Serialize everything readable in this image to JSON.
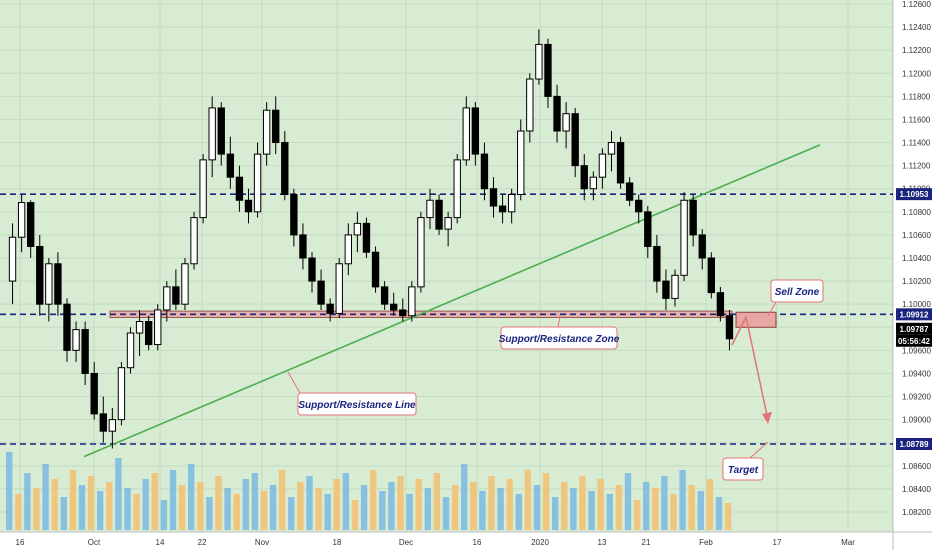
{
  "chart_data": {
    "type": "candlestick",
    "title": "",
    "xlabel": "",
    "ylabel": "",
    "ylim": [
      1.081,
      1.126
    ],
    "grid": true,
    "x_tick_labels": [
      "16",
      "Oct",
      "14",
      "22",
      "Nov",
      "18",
      "Dec",
      "16",
      "2020",
      "13",
      "21",
      "Feb",
      "17",
      "Mar"
    ],
    "y_tick_labels": [
      "1.12600",
      "1.12400",
      "1.12200",
      "1.12000",
      "1.11800",
      "1.11600",
      "1.11400",
      "1.11200",
      "1.11000",
      "1.10800",
      "1.10600",
      "1.10400",
      "1.10200",
      "1.10000",
      "1.09800",
      "1.09600",
      "1.09400",
      "1.09200",
      "1.09000",
      "1.08800",
      "1.08600",
      "1.08400",
      "1.08200"
    ],
    "price_tags": [
      {
        "label": "1.10953",
        "value": 1.10953,
        "color": "#1a237e"
      },
      {
        "label": "1.09912",
        "value": 1.09912,
        "color": "#1a237e"
      },
      {
        "label": "1.09787",
        "value": 1.09787,
        "color": "#000000"
      },
      {
        "label": "05:56:42",
        "value": 1.097,
        "color": "#000000"
      },
      {
        "label": "1.08789",
        "value": 1.08789,
        "color": "#1a237e"
      }
    ],
    "horizontal_levels": [
      1.10953,
      1.09912,
      1.08789
    ],
    "sr_zone": [
      1.09885,
      1.0994
    ],
    "sell_zone": [
      1.098,
      1.0993
    ],
    "trend_line": {
      "from": [
        1.0868
      ],
      "to": [
        1.1138
      ]
    },
    "candles": [
      [
        1.102,
        1.107,
        1.1,
        1.1058
      ],
      [
        1.1058,
        1.1095,
        1.1045,
        1.1088
      ],
      [
        1.1088,
        1.109,
        1.104,
        1.105
      ],
      [
        1.105,
        1.106,
        1.099,
        1.1
      ],
      [
        1.1,
        1.104,
        1.0985,
        1.1035
      ],
      [
        1.1035,
        1.1045,
        1.099,
        1.1
      ],
      [
        1.1,
        1.1005,
        1.095,
        1.096
      ],
      [
        1.096,
        1.0985,
        1.095,
        1.0978
      ],
      [
        1.0978,
        1.0985,
        1.093,
        1.094
      ],
      [
        1.094,
        1.095,
        1.09,
        1.0905
      ],
      [
        1.0905,
        1.092,
        1.088,
        1.089
      ],
      [
        1.089,
        1.091,
        1.0875,
        1.09
      ],
      [
        1.09,
        1.095,
        1.0895,
        1.0945
      ],
      [
        1.0945,
        1.098,
        1.094,
        1.0975
      ],
      [
        1.0975,
        1.0995,
        1.0955,
        1.0985
      ],
      [
        1.0985,
        1.099,
        1.096,
        1.0965
      ],
      [
        1.0965,
        1.1,
        1.096,
        1.0995
      ],
      [
        1.0995,
        1.102,
        1.0985,
        1.1015
      ],
      [
        1.1015,
        1.103,
        1.0995,
        1.1
      ],
      [
        1.1,
        1.104,
        1.0995,
        1.1035
      ],
      [
        1.1035,
        1.108,
        1.103,
        1.1075
      ],
      [
        1.1075,
        1.113,
        1.107,
        1.1125
      ],
      [
        1.1125,
        1.118,
        1.111,
        1.117
      ],
      [
        1.117,
        1.1175,
        1.112,
        1.113
      ],
      [
        1.113,
        1.1145,
        1.11,
        1.111
      ],
      [
        1.111,
        1.112,
        1.108,
        1.109
      ],
      [
        1.109,
        1.11,
        1.107,
        1.108
      ],
      [
        1.108,
        1.114,
        1.1075,
        1.113
      ],
      [
        1.113,
        1.1175,
        1.112,
        1.1168
      ],
      [
        1.1168,
        1.118,
        1.113,
        1.114
      ],
      [
        1.114,
        1.115,
        1.109,
        1.1095
      ],
      [
        1.1095,
        1.11,
        1.105,
        1.106
      ],
      [
        1.106,
        1.107,
        1.103,
        1.104
      ],
      [
        1.104,
        1.1045,
        1.101,
        1.102
      ],
      [
        1.102,
        1.103,
        1.0995,
        1.1
      ],
      [
        1.1,
        1.1005,
        1.0985,
        1.0992
      ],
      [
        1.0992,
        1.104,
        1.0988,
        1.1035
      ],
      [
        1.1035,
        1.107,
        1.1025,
        1.106
      ],
      [
        1.106,
        1.108,
        1.1045,
        1.107
      ],
      [
        1.107,
        1.1075,
        1.104,
        1.1045
      ],
      [
        1.1045,
        1.105,
        1.101,
        1.1015
      ],
      [
        1.1015,
        1.102,
        1.0995,
        1.1
      ],
      [
        1.1,
        1.101,
        1.099,
        1.0995
      ],
      [
        1.0995,
        1.1005,
        1.0985,
        1.099
      ],
      [
        1.099,
        1.102,
        1.0985,
        1.1015
      ],
      [
        1.1015,
        1.108,
        1.101,
        1.1075
      ],
      [
        1.1075,
        1.11,
        1.1065,
        1.109
      ],
      [
        1.109,
        1.1095,
        1.106,
        1.1065
      ],
      [
        1.1065,
        1.108,
        1.105,
        1.1075
      ],
      [
        1.1075,
        1.113,
        1.107,
        1.1125
      ],
      [
        1.1125,
        1.118,
        1.112,
        1.117
      ],
      [
        1.117,
        1.1175,
        1.112,
        1.113
      ],
      [
        1.113,
        1.114,
        1.109,
        1.11
      ],
      [
        1.11,
        1.111,
        1.1075,
        1.1085
      ],
      [
        1.1085,
        1.1095,
        1.107,
        1.108
      ],
      [
        1.108,
        1.11,
        1.107,
        1.1095
      ],
      [
        1.1095,
        1.116,
        1.109,
        1.115
      ],
      [
        1.115,
        1.12,
        1.114,
        1.1195
      ],
      [
        1.1195,
        1.1238,
        1.119,
        1.1225
      ],
      [
        1.1225,
        1.123,
        1.117,
        1.118
      ],
      [
        1.118,
        1.119,
        1.114,
        1.115
      ],
      [
        1.115,
        1.1175,
        1.1135,
        1.1165
      ],
      [
        1.1165,
        1.117,
        1.111,
        1.112
      ],
      [
        1.112,
        1.113,
        1.109,
        1.11
      ],
      [
        1.11,
        1.1115,
        1.109,
        1.111
      ],
      [
        1.111,
        1.1135,
        1.11,
        1.113
      ],
      [
        1.113,
        1.115,
        1.1115,
        1.114
      ],
      [
        1.114,
        1.1145,
        1.11,
        1.1105
      ],
      [
        1.1105,
        1.111,
        1.1085,
        1.109
      ],
      [
        1.109,
        1.1095,
        1.107,
        1.108
      ],
      [
        1.108,
        1.1085,
        1.104,
        1.105
      ],
      [
        1.105,
        1.106,
        1.101,
        1.102
      ],
      [
        1.102,
        1.103,
        1.0995,
        1.1005
      ],
      [
        1.1005,
        1.103,
        1.0998,
        1.1025
      ],
      [
        1.1025,
        1.1097,
        1.102,
        1.109
      ],
      [
        1.109,
        1.1095,
        1.105,
        1.106
      ],
      [
        1.106,
        1.1065,
        1.103,
        1.104
      ],
      [
        1.104,
        1.1045,
        1.1005,
        1.101
      ],
      [
        1.101,
        1.1015,
        1.0985,
        1.099
      ],
      [
        1.099,
        1.0995,
        1.096,
        1.097
      ]
    ],
    "volumes": [
      [
        130,
        "b"
      ],
      [
        60,
        "o"
      ],
      [
        95,
        "b"
      ],
      [
        70,
        "o"
      ],
      [
        110,
        "b"
      ],
      [
        85,
        "o"
      ],
      [
        55,
        "b"
      ],
      [
        100,
        "o"
      ],
      [
        75,
        "b"
      ],
      [
        90,
        "o"
      ],
      [
        65,
        "b"
      ],
      [
        80,
        "o"
      ],
      [
        120,
        "b"
      ],
      [
        70,
        "b"
      ],
      [
        60,
        "o"
      ],
      [
        85,
        "b"
      ],
      [
        95,
        "o"
      ],
      [
        50,
        "b"
      ],
      [
        100,
        "b"
      ],
      [
        75,
        "o"
      ],
      [
        110,
        "b"
      ],
      [
        80,
        "o"
      ],
      [
        55,
        "b"
      ],
      [
        90,
        "o"
      ],
      [
        70,
        "b"
      ],
      [
        60,
        "o"
      ],
      [
        85,
        "b"
      ],
      [
        95,
        "b"
      ],
      [
        65,
        "o"
      ],
      [
        75,
        "b"
      ],
      [
        100,
        "o"
      ],
      [
        55,
        "b"
      ],
      [
        80,
        "o"
      ],
      [
        90,
        "b"
      ],
      [
        70,
        "o"
      ],
      [
        60,
        "b"
      ],
      [
        85,
        "o"
      ],
      [
        95,
        "b"
      ],
      [
        50,
        "o"
      ],
      [
        75,
        "b"
      ],
      [
        100,
        "o"
      ],
      [
        65,
        "b"
      ],
      [
        80,
        "b"
      ],
      [
        90,
        "o"
      ],
      [
        60,
        "b"
      ],
      [
        85,
        "o"
      ],
      [
        70,
        "b"
      ],
      [
        95,
        "o"
      ],
      [
        55,
        "b"
      ],
      [
        75,
        "o"
      ],
      [
        110,
        "b"
      ],
      [
        80,
        "o"
      ],
      [
        65,
        "b"
      ],
      [
        90,
        "o"
      ],
      [
        70,
        "b"
      ],
      [
        85,
        "o"
      ],
      [
        60,
        "b"
      ],
      [
        100,
        "o"
      ],
      [
        75,
        "b"
      ],
      [
        95,
        "o"
      ],
      [
        55,
        "b"
      ],
      [
        80,
        "o"
      ],
      [
        70,
        "b"
      ],
      [
        90,
        "o"
      ],
      [
        65,
        "b"
      ],
      [
        85,
        "o"
      ],
      [
        60,
        "b"
      ],
      [
        75,
        "o"
      ],
      [
        95,
        "b"
      ],
      [
        50,
        "o"
      ],
      [
        80,
        "b"
      ],
      [
        70,
        "o"
      ],
      [
        90,
        "b"
      ],
      [
        60,
        "o"
      ],
      [
        100,
        "b"
      ],
      [
        75,
        "o"
      ],
      [
        65,
        "b"
      ],
      [
        85,
        "o"
      ],
      [
        55,
        "b"
      ],
      [
        45,
        "o"
      ]
    ],
    "colors": {
      "background": "#d7ecd3",
      "candle": "#000000",
      "level_line": "#1a237e",
      "trend_line": "#4caf50",
      "zone_fill": "#e9a7a3",
      "zone_stroke": "#8a3f3b",
      "arrow": "#e57373",
      "vol_blue": "#7ab8e0",
      "vol_orange": "#f5c06e"
    },
    "annotations": [
      {
        "label": "Sell Zone"
      },
      {
        "label": "Support/Resistance Zone"
      },
      {
        "label": "Support/Resistance Line"
      },
      {
        "label": "Target"
      }
    ]
  }
}
